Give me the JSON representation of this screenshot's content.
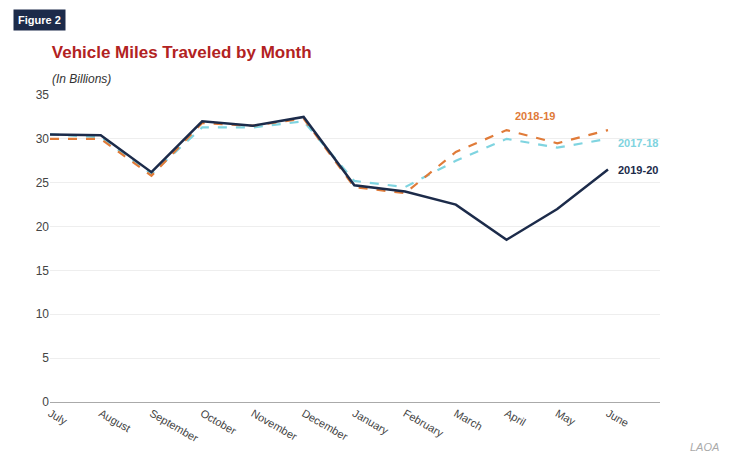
{
  "chart_data": {
    "type": "line",
    "title": "Vehicle Miles Traveled by Month",
    "subtitle": "(In Billions)",
    "annotations": [
      "Figure 2",
      "LAOA"
    ],
    "categories": [
      "July",
      "August",
      "September",
      "October",
      "November",
      "December",
      "January",
      "February",
      "March",
      "April",
      "May",
      "June"
    ],
    "series": [
      {
        "name": "2017-18",
        "color": "#7fd4e0",
        "line_style": "dashed",
        "values": [
          30.5,
          30.2,
          26.0,
          31.3,
          31.3,
          32.0,
          25.2,
          24.5,
          27.5,
          30.0,
          29.0,
          30.0
        ]
      },
      {
        "name": "2018-19",
        "color": "#e07b39",
        "line_style": "dashed",
        "values": [
          30.0,
          30.0,
          25.8,
          31.8,
          31.5,
          32.3,
          24.5,
          23.8,
          28.5,
          31.0,
          29.5,
          31.0
        ]
      },
      {
        "name": "2019-20",
        "color": "#1c2b4a",
        "line_style": "solid",
        "values": [
          30.5,
          30.4,
          26.2,
          32.0,
          31.5,
          32.5,
          24.7,
          24.0,
          22.5,
          18.5,
          22.0,
          26.5
        ]
      }
    ],
    "ylim": [
      0,
      35
    ],
    "yticks": [
      0,
      5,
      10,
      15,
      20,
      25,
      30,
      35
    ],
    "grid": true
  }
}
